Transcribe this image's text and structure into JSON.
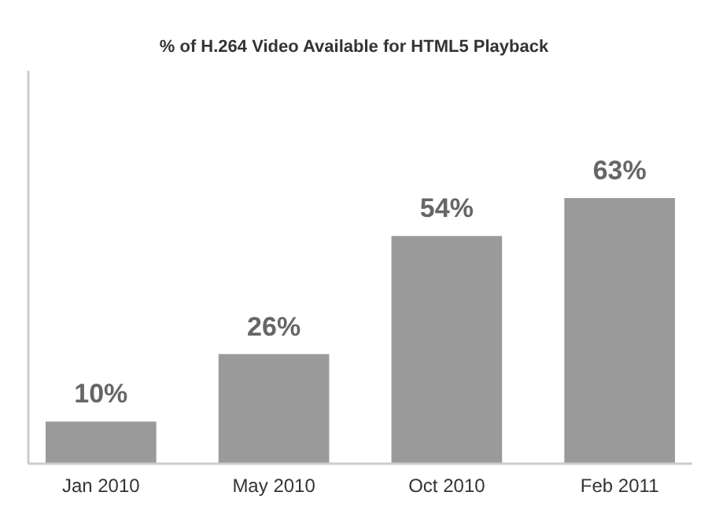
{
  "chart_data": {
    "type": "bar",
    "title": "% of H.264 Video Available for HTML5 Playback",
    "categories": [
      "Jan 2010",
      "May 2010",
      "Oct 2010",
      "Feb 2011"
    ],
    "values": [
      10,
      26,
      54,
      63
    ],
    "value_labels": [
      "10%",
      "26%",
      "54%",
      "63%"
    ],
    "color": "#9a9a9a",
    "grid": false
  }
}
